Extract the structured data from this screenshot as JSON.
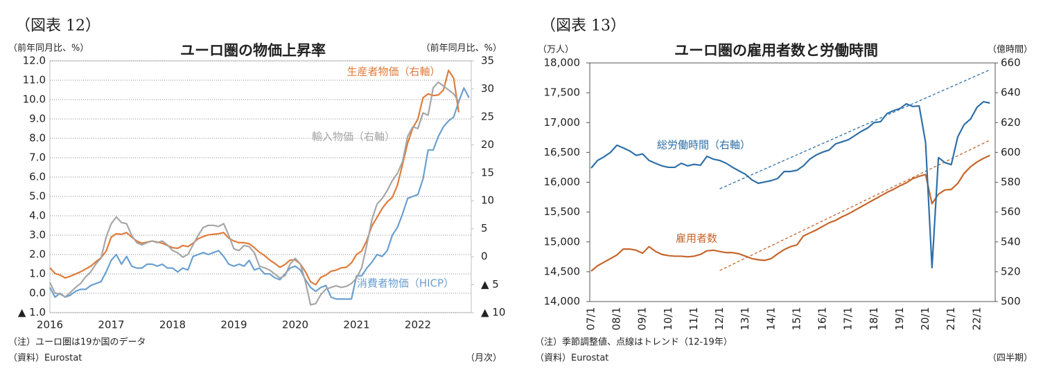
{
  "chart_data": [
    {
      "type": "line",
      "figure_label": "（図表 12）",
      "title": "ユーロ圏の物価上昇率",
      "ylabel": "（前年同月比、%）",
      "y2label": "（前年同月比、%）",
      "xlabel": "（月次）",
      "notes": [
        "（注）ユーロ圏は19か国のデータ",
        "（資料）Eurostat"
      ],
      "grid": true,
      "categories": [
        "2016",
        null,
        null,
        null,
        null,
        null,
        null,
        null,
        null,
        null,
        null,
        null,
        "2017",
        null,
        null,
        null,
        null,
        null,
        null,
        null,
        null,
        null,
        null,
        null,
        "2018",
        null,
        null,
        null,
        null,
        null,
        null,
        null,
        null,
        null,
        null,
        null,
        "2019",
        null,
        null,
        null,
        null,
        null,
        null,
        null,
        null,
        null,
        null,
        null,
        "2020",
        null,
        null,
        null,
        null,
        null,
        null,
        null,
        null,
        null,
        null,
        null,
        "2021",
        null,
        null,
        null,
        null,
        null,
        null,
        null,
        null,
        null,
        null,
        null,
        "2022",
        null,
        null,
        null,
        null,
        null,
        null,
        null,
        null,
        null,
        null
      ],
      "ylim": [
        -1,
        12
      ],
      "yticks": [
        {
          "value": -1,
          "label": "▲ 1.0"
        },
        {
          "value": 0,
          "label": "0.0"
        },
        {
          "value": 1,
          "label": "1.0"
        },
        {
          "value": 2,
          "label": "2.0"
        },
        {
          "value": 3,
          "label": "3.0"
        },
        {
          "value": 4,
          "label": "4.0"
        },
        {
          "value": 5,
          "label": "5.0"
        },
        {
          "value": 6,
          "label": "6.0"
        },
        {
          "value": 7,
          "label": "7.0"
        },
        {
          "value": 8,
          "label": "8.0"
        },
        {
          "value": 9,
          "label": "9.0"
        },
        {
          "value": 10,
          "label": "10.0"
        },
        {
          "value": 11,
          "label": "11.0"
        },
        {
          "value": 12,
          "label": "12.0"
        }
      ],
      "y2lim": [
        -10,
        35
      ],
      "y2ticks": [
        {
          "value": -10,
          "label": "▲ 10"
        },
        {
          "value": -5,
          "label": "▲ 5"
        },
        0,
        5,
        10,
        15,
        20,
        25,
        30,
        35
      ],
      "series": [
        {
          "name": "消費者物価（HICP）",
          "color": "#6a9fd0",
          "values": [
            0.3,
            -0.2,
            0.0,
            -0.2,
            -0.1,
            0.1,
            0.2,
            0.2,
            0.4,
            0.5,
            0.6,
            1.1,
            1.7,
            2.0,
            1.5,
            1.9,
            1.4,
            1.3,
            1.3,
            1.5,
            1.5,
            1.4,
            1.5,
            1.3,
            1.3,
            1.1,
            1.3,
            1.2,
            1.9,
            2.0,
            2.1,
            2.0,
            2.1,
            2.2,
            1.9,
            1.5,
            1.4,
            1.5,
            1.4,
            1.7,
            1.2,
            1.3,
            1.0,
            1.0,
            0.8,
            0.7,
            1.0,
            1.3,
            1.4,
            1.2,
            0.7,
            0.3,
            0.1,
            0.3,
            0.4,
            -0.2,
            -0.3,
            -0.3,
            -0.3,
            -0.3,
            0.9,
            0.9,
            1.3,
            1.6,
            2.0,
            1.9,
            2.2,
            3.0,
            3.4,
            4.1,
            4.9,
            5.0,
            5.1,
            5.9,
            7.4,
            7.4,
            8.1,
            8.6,
            8.9,
            9.1,
            9.9,
            10.6,
            10.1
          ]
        },
        {
          "name": "生産者物価（右軸）",
          "color": "#e07b39",
          "axis": "y2",
          "values": [
            -2.0,
            -3.0,
            -3.3,
            -3.8,
            -3.5,
            -3.1,
            -2.7,
            -2.2,
            -1.7,
            -0.9,
            -0.2,
            1.0,
            3.5,
            4.1,
            4.0,
            4.3,
            3.5,
            2.8,
            2.4,
            2.6,
            2.8,
            2.6,
            2.4,
            2.0,
            1.6,
            1.5,
            2.0,
            1.8,
            2.4,
            3.2,
            3.6,
            3.9,
            4.0,
            4.1,
            4.3,
            3.3,
            2.8,
            2.5,
            2.5,
            2.3,
            1.6,
            0.8,
            0.2,
            -0.6,
            -1.2,
            -1.9,
            -1.4,
            -0.6,
            -0.6,
            -1.3,
            -2.7,
            -4.5,
            -5.0,
            -3.7,
            -3.3,
            -2.6,
            -2.4,
            -2.0,
            -1.9,
            -1.1,
            0.4,
            1.0,
            2.9,
            5.5,
            7.0,
            8.6,
            9.8,
            10.6,
            12.8,
            16.5,
            20.3,
            23.0,
            24.6,
            28.4,
            29.1,
            28.8,
            28.9,
            29.8,
            33.3,
            31.9,
            25.8,
            null,
            null
          ]
        },
        {
          "name": "輸入物価（右軸）",
          "color": "#a6a6a6",
          "axis": "y2",
          "values": [
            -4.6,
            -6.5,
            -6.7,
            -7.2,
            -6.4,
            -5.5,
            -4.8,
            -3.6,
            -2.7,
            -1.3,
            -0.3,
            3.5,
            5.9,
            7.1,
            6.1,
            5.9,
            3.8,
            2.5,
            2.1,
            2.5,
            2.8,
            2.5,
            2.8,
            2.1,
            1.1,
            0.7,
            -0.1,
            0.4,
            2.1,
            3.8,
            5.2,
            5.6,
            5.6,
            5.4,
            5.9,
            3.8,
            1.4,
            1.1,
            2.0,
            1.8,
            0.7,
            -1.7,
            -2.0,
            -2.4,
            -3.1,
            -3.8,
            -3.4,
            -1.3,
            -0.3,
            -1.3,
            -4.5,
            -8.6,
            -8.4,
            -6.8,
            -5.8,
            -5.5,
            -5.2,
            -5.5,
            -5.3,
            -4.8,
            -3.8,
            -2.0,
            2.1,
            6.6,
            9.4,
            10.4,
            11.8,
            13.6,
            14.9,
            17.0,
            21.5,
            23.2,
            22.9,
            25.7,
            25.3,
            30.2,
            31.2,
            30.5,
            29.8,
            29.1,
            27.7,
            null,
            null
          ]
        }
      ]
    },
    {
      "type": "line",
      "figure_label": "（図表 13）",
      "title": "ユーロ圏の雇用者数と労働時間",
      "ylabel": "（万人）",
      "y2label": "（億時間）",
      "xlabel": "（四半期）",
      "notes": [
        "（注）季節調整値、点線はトレンド（12-19年）",
        "（資料）Eurostat"
      ],
      "grid": false,
      "categories": [
        "07/1",
        null,
        null,
        null,
        "08/1",
        null,
        null,
        null,
        "09/1",
        null,
        null,
        null,
        "10/1",
        null,
        null,
        null,
        "11/1",
        null,
        null,
        null,
        "12/1",
        null,
        null,
        null,
        "13/1",
        null,
        null,
        null,
        "14/1",
        null,
        null,
        null,
        "15/1",
        null,
        null,
        null,
        "16/1",
        null,
        null,
        null,
        "17/1",
        null,
        null,
        null,
        "18/1",
        null,
        null,
        null,
        "19/1",
        null,
        null,
        null,
        "20/1",
        null,
        null,
        null,
        "21/1",
        null,
        null,
        null,
        "22/1",
        null,
        null
      ],
      "ylim": [
        14000,
        18000
      ],
      "yticks": [
        {
          "value": 14000,
          "label": "14,000"
        },
        {
          "value": 14500,
          "label": "14,500"
        },
        {
          "value": 15000,
          "label": "15,000"
        },
        {
          "value": 15500,
          "label": "15,500"
        },
        {
          "value": 16000,
          "label": "16,000"
        },
        {
          "value": 16500,
          "label": "16,500"
        },
        {
          "value": 17000,
          "label": "17,000"
        },
        {
          "value": 17500,
          "label": "17,500"
        },
        {
          "value": 18000,
          "label": "18,000"
        }
      ],
      "y2lim": [
        500,
        660
      ],
      "y2ticks": [
        500,
        520,
        540,
        560,
        580,
        600,
        620,
        640,
        660
      ],
      "series": [
        {
          "name": "雇用者数",
          "color": "#c5652a",
          "values": [
            14510,
            14600,
            14660,
            14720,
            14780,
            14880,
            14880,
            14860,
            14810,
            14920,
            14840,
            14790,
            14770,
            14760,
            14760,
            14750,
            14760,
            14790,
            14850,
            14860,
            14840,
            14820,
            14820,
            14800,
            14760,
            14720,
            14700,
            14690,
            14720,
            14800,
            14870,
            14920,
            14950,
            15100,
            15150,
            15200,
            15260,
            15320,
            15360,
            15420,
            15470,
            15530,
            15590,
            15650,
            15710,
            15770,
            15830,
            15880,
            15940,
            15990,
            16060,
            16100,
            16130,
            15640,
            15800,
            15870,
            15880,
            15980,
            16150,
            16260,
            16340,
            16400,
            16450
          ]
        },
        {
          "name": "総労働時間（右軸）",
          "color": "#2e6fa7",
          "axis": "y2",
          "values": [
            589.5,
            594.6,
            597.0,
            600.0,
            604.8,
            603.0,
            601.0,
            598.0,
            599.0,
            594.6,
            592.7,
            591.0,
            590.0,
            590.0,
            592.7,
            591.0,
            592.0,
            591.4,
            597.4,
            595.5,
            594.6,
            592.7,
            590.0,
            587.6,
            585.3,
            581.6,
            579.3,
            580.2,
            581.1,
            582.5,
            587.2,
            587.2,
            588.0,
            591.0,
            595.5,
            598.3,
            600.2,
            601.6,
            605.7,
            607.1,
            608.5,
            611.3,
            614.1,
            616.4,
            620.0,
            620.6,
            626.0,
            628.0,
            629.4,
            632.6,
            630.8,
            631.2,
            606.7,
            522.7,
            596.5,
            593.2,
            591.8,
            610.4,
            618.7,
            622.4,
            630.3,
            634.0,
            633.1
          ]
        }
      ],
      "trends": [
        {
          "color": "#c5652a",
          "line_style": "dashed",
          "values": [
            null,
            null,
            null,
            null,
            null,
            null,
            null,
            null,
            null,
            null,
            null,
            null,
            null,
            null,
            null,
            null,
            null,
            null,
            null,
            null,
            14520,
            14572,
            14624,
            14676,
            14728,
            14780,
            14832,
            14884,
            14936,
            14988,
            15040,
            15092,
            15144,
            15196,
            15248,
            15300,
            15352,
            15404,
            15456,
            15508,
            15560,
            15612,
            15664,
            15716,
            15768,
            15820,
            15872,
            15924,
            15976,
            16028,
            16080,
            16132,
            16184,
            16236,
            16288,
            16340,
            16392,
            16444,
            16496,
            16548,
            16600,
            16652,
            16704
          ]
        },
        {
          "color": "#2e6fa7",
          "line_style": "dashed",
          "axis": "y2",
          "values": [
            null,
            null,
            null,
            null,
            null,
            null,
            null,
            null,
            null,
            null,
            null,
            null,
            null,
            null,
            null,
            null,
            null,
            null,
            null,
            null,
            575.6,
            577.5,
            579.4,
            581.3,
            583.2,
            585.1,
            587.0,
            588.9,
            590.8,
            592.7,
            594.6,
            596.5,
            598.4,
            600.3,
            602.2,
            604.1,
            606.0,
            607.9,
            609.8,
            611.7,
            613.6,
            615.5,
            617.4,
            619.3,
            621.2,
            623.1,
            625.0,
            626.9,
            628.8,
            630.7,
            632.6,
            634.5,
            636.4,
            638.3,
            640.2,
            642.1,
            644.0,
            645.9,
            647.8,
            649.7,
            651.6,
            653.5,
            655.4
          ]
        }
      ]
    }
  ]
}
